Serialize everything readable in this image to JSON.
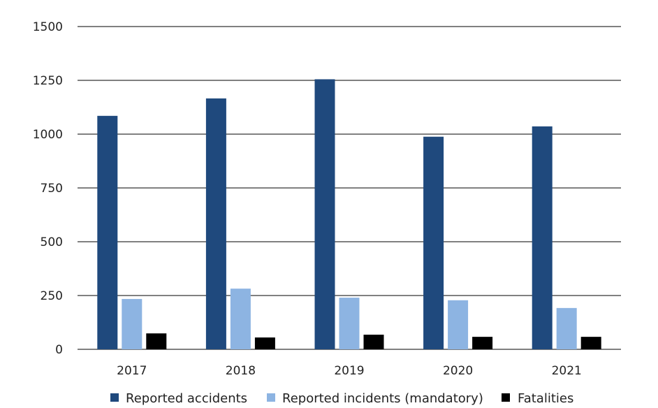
{
  "chart_data": {
    "type": "bar",
    "title": "",
    "xlabel": "",
    "ylabel": "",
    "categories": [
      "2017",
      "2018",
      "2019",
      "2020",
      "2021"
    ],
    "series": [
      {
        "name": "Reported accidents",
        "color": "#1f497d",
        "values": [
          1085,
          1166,
          1255,
          988,
          1036
        ]
      },
      {
        "name": "Reported incidents (mandatory)",
        "color": "#8db4e2",
        "values": [
          234,
          282,
          240,
          228,
          192
        ]
      },
      {
        "name": "Fatalities",
        "color": "#000000",
        "values": [
          74,
          55,
          68,
          58,
          58
        ]
      }
    ],
    "ylim": [
      0,
      1500
    ],
    "yticks": [
      "0",
      "250",
      "500",
      "750",
      "1000",
      "1250",
      "1500"
    ],
    "grid": true,
    "legend_position": "bottom"
  }
}
